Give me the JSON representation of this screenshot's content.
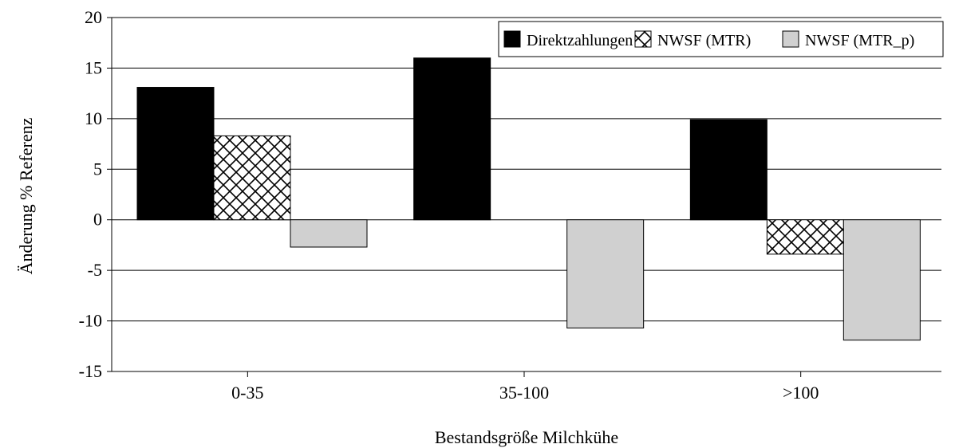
{
  "chart_data": {
    "type": "bar",
    "categories": [
      "0-35",
      "35-100",
      ">100"
    ],
    "series": [
      {
        "name": "Direktzahlungen",
        "values": [
          13.1,
          16.0,
          9.9
        ],
        "fill": "solid",
        "color": "#000000"
      },
      {
        "name": "NWSF (MTR)",
        "values": [
          8.3,
          0,
          -3.4
        ],
        "fill": "crosshatch",
        "color": "#000000"
      },
      {
        "name": "NWSF (MTR_p)",
        "values": [
          -2.7,
          -10.7,
          -11.9
        ],
        "fill": "solid",
        "color": "#d0d0d0"
      }
    ],
    "xlabel": "Bestandsgröße Milchkühe",
    "ylabel": "Änderung % Referenz",
    "ylim": [
      -15,
      20
    ],
    "yticks": [
      "20",
      "15",
      "10",
      "5",
      "0",
      "-5",
      "-10",
      "-15"
    ],
    "grid": true,
    "legend_position": "top-right"
  }
}
